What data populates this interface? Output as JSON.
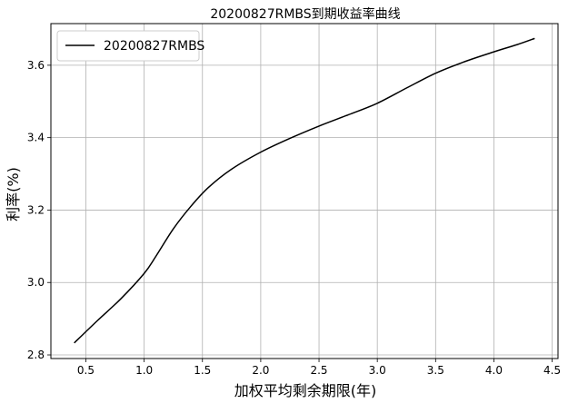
{
  "chart_data": {
    "type": "line",
    "title": "20200827RMBS到期收益率曲线",
    "xlabel": "加权平均剩余期限(年)",
    "ylabel": "利率(%)",
    "xlim": [
      0.2,
      4.55
    ],
    "ylim": [
      2.79,
      3.715
    ],
    "xticks": [
      "0.5",
      "1.0",
      "1.5",
      "2.0",
      "2.5",
      "3.0",
      "3.5",
      "4.0",
      "4.5"
    ],
    "yticks": [
      "2.8",
      "3.0",
      "3.2",
      "3.4",
      "3.6"
    ],
    "grid": true,
    "legend_position": "top-left",
    "series": [
      {
        "name": "20200827RMBS",
        "color": "#000000",
        "x": [
          0.4,
          0.6,
          0.8,
          1.0,
          1.1,
          1.25,
          1.4,
          1.55,
          1.75,
          2.0,
          2.25,
          2.5,
          2.75,
          3.0,
          3.25,
          3.5,
          3.75,
          4.0,
          4.2,
          4.35
        ],
        "y": [
          2.833,
          2.895,
          2.955,
          3.025,
          3.072,
          3.148,
          3.21,
          3.262,
          3.313,
          3.36,
          3.398,
          3.432,
          3.463,
          3.495,
          3.537,
          3.578,
          3.61,
          3.637,
          3.657,
          3.674
        ]
      }
    ]
  }
}
